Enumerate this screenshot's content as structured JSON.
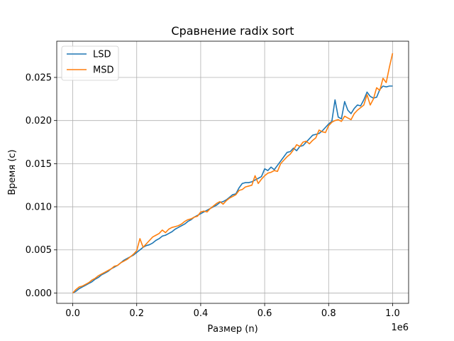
{
  "chart_data": {
    "type": "line",
    "title": "Сравнение radix sort",
    "xlabel": "Размер (n)",
    "ylabel": "Время (с)",
    "x_offset_label": "1e6",
    "xlim": [
      -0.05,
      1.05
    ],
    "ylim": [
      -0.0012,
      0.0292
    ],
    "x_ticks": [
      0.0,
      0.2,
      0.4,
      0.6,
      0.8,
      1.0
    ],
    "x_tick_labels": [
      "0.0",
      "0.2",
      "0.4",
      "0.6",
      "0.8",
      "1.0"
    ],
    "y_ticks": [
      0.0,
      0.005,
      0.01,
      0.015,
      0.02,
      0.025
    ],
    "y_tick_labels": [
      "0.000",
      "0.005",
      "0.010",
      "0.015",
      "0.020",
      "0.025"
    ],
    "grid": true,
    "legend_position": "top-left",
    "x": [
      0.0,
      0.01,
      0.02,
      0.03,
      0.04,
      0.05,
      0.06,
      0.07,
      0.08,
      0.09,
      0.1,
      0.11,
      0.12,
      0.13,
      0.14,
      0.15,
      0.16,
      0.17,
      0.18,
      0.19,
      0.2,
      0.21,
      0.22,
      0.23,
      0.24,
      0.25,
      0.26,
      0.27,
      0.28,
      0.29,
      0.3,
      0.31,
      0.32,
      0.33,
      0.34,
      0.35,
      0.36,
      0.37,
      0.38,
      0.39,
      0.4,
      0.41,
      0.42,
      0.43,
      0.44,
      0.45,
      0.46,
      0.47,
      0.48,
      0.49,
      0.5,
      0.51,
      0.52,
      0.53,
      0.54,
      0.55,
      0.56,
      0.57,
      0.58,
      0.59,
      0.6,
      0.61,
      0.62,
      0.63,
      0.64,
      0.65,
      0.66,
      0.67,
      0.68,
      0.69,
      0.7,
      0.71,
      0.72,
      0.73,
      0.74,
      0.75,
      0.76,
      0.77,
      0.78,
      0.79,
      0.8,
      0.81,
      0.82,
      0.83,
      0.84,
      0.85,
      0.86,
      0.87,
      0.88,
      0.89,
      0.9,
      0.91,
      0.92,
      0.93,
      0.94,
      0.95,
      0.96,
      0.97,
      0.98,
      0.99,
      1.0
    ],
    "series": [
      {
        "name": "LSD",
        "color": "#1f77b4",
        "values": [
          0.0,
          0.0002,
          0.0005,
          0.0007,
          0.0009,
          0.0011,
          0.0013,
          0.0016,
          0.0018,
          0.0021,
          0.0023,
          0.0025,
          0.0028,
          0.003,
          0.0032,
          0.0035,
          0.0038,
          0.004,
          0.0042,
          0.0044,
          0.0047,
          0.005,
          0.0053,
          0.0055,
          0.0056,
          0.0058,
          0.0061,
          0.0063,
          0.0066,
          0.0067,
          0.0069,
          0.0071,
          0.0074,
          0.0076,
          0.0078,
          0.008,
          0.0083,
          0.0085,
          0.0088,
          0.009,
          0.0092,
          0.0094,
          0.0096,
          0.0098,
          0.01,
          0.0102,
          0.0105,
          0.0106,
          0.0108,
          0.0111,
          0.0114,
          0.0115,
          0.0122,
          0.0127,
          0.0128,
          0.0128,
          0.0129,
          0.0131,
          0.0133,
          0.0135,
          0.0144,
          0.0142,
          0.0146,
          0.0143,
          0.0148,
          0.0153,
          0.0158,
          0.0163,
          0.0164,
          0.0168,
          0.0165,
          0.017,
          0.0171,
          0.0175,
          0.0179,
          0.0183,
          0.0184,
          0.0185,
          0.0188,
          0.0192,
          0.0196,
          0.0199,
          0.0224,
          0.0204,
          0.0202,
          0.0222,
          0.0212,
          0.0208,
          0.0214,
          0.0218,
          0.0217,
          0.0224,
          0.0233,
          0.0228,
          0.0226,
          0.0227,
          0.0236,
          0.024,
          0.0239,
          0.024,
          0.024
        ]
      },
      {
        "name": "MSD",
        "color": "#ff7f0e",
        "values": [
          0.0,
          0.0004,
          0.0007,
          0.0008,
          0.001,
          0.0012,
          0.0015,
          0.0017,
          0.002,
          0.0022,
          0.0024,
          0.0026,
          0.0028,
          0.0031,
          0.0032,
          0.0035,
          0.0037,
          0.0039,
          0.0042,
          0.0045,
          0.0049,
          0.0063,
          0.0053,
          0.0057,
          0.0061,
          0.0065,
          0.0067,
          0.0069,
          0.0073,
          0.007,
          0.0074,
          0.0076,
          0.0077,
          0.0078,
          0.008,
          0.0083,
          0.0085,
          0.0086,
          0.0088,
          0.0089,
          0.0094,
          0.0095,
          0.0094,
          0.0098,
          0.0101,
          0.0104,
          0.0106,
          0.0103,
          0.0107,
          0.011,
          0.0112,
          0.0114,
          0.0119,
          0.012,
          0.0123,
          0.0124,
          0.0125,
          0.0136,
          0.0127,
          0.0132,
          0.0136,
          0.0139,
          0.014,
          0.0142,
          0.0141,
          0.015,
          0.0154,
          0.0158,
          0.0161,
          0.0166,
          0.0172,
          0.017,
          0.0175,
          0.0176,
          0.0173,
          0.0177,
          0.018,
          0.0189,
          0.0187,
          0.0186,
          0.0194,
          0.0198,
          0.02,
          0.0201,
          0.0199,
          0.0205,
          0.0203,
          0.0201,
          0.0208,
          0.0212,
          0.0215,
          0.0218,
          0.023,
          0.0218,
          0.0225,
          0.0238,
          0.0235,
          0.0249,
          0.0244,
          0.0262,
          0.0278
        ]
      }
    ]
  }
}
